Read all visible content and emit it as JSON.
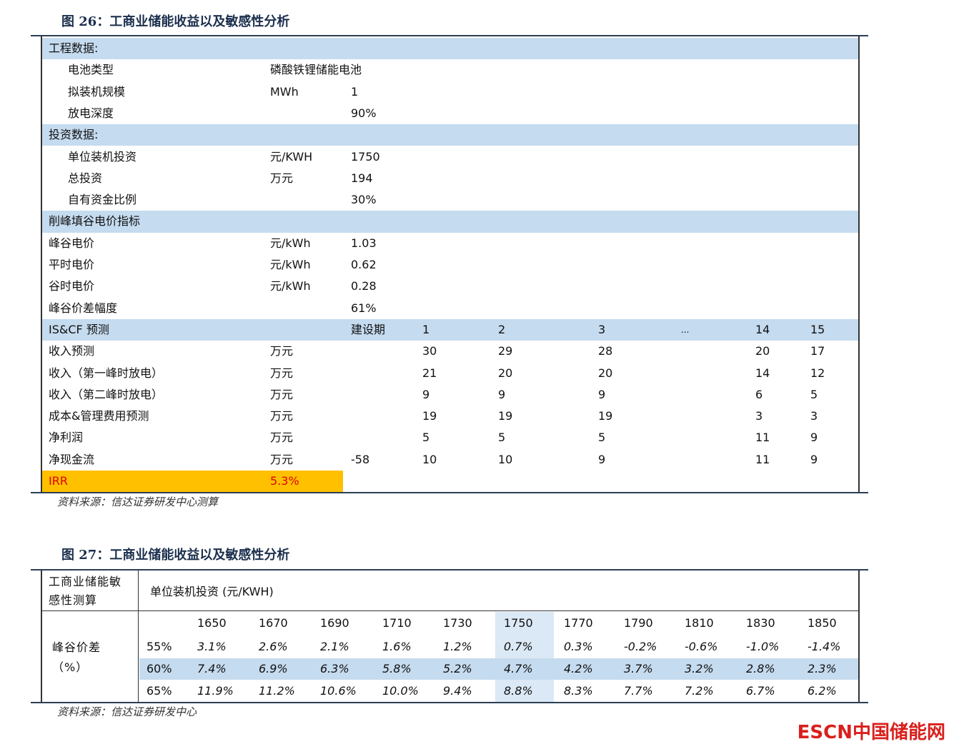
{
  "figure26": {
    "title": "图 26：工商业储能收益以及敏感性分析",
    "rows": [
      {
        "section": "工程数据:"
      },
      {
        "label": "电池类型",
        "unit": "磷酸铁锂储能电池"
      },
      {
        "label": "拟装机规模",
        "unit": "MWh",
        "value": "1"
      },
      {
        "label": "放电深度",
        "value": "90%"
      },
      {
        "section": "投资数据:"
      },
      {
        "label": "单位装机投资",
        "unit": "元/KWH",
        "value": "1750"
      },
      {
        "label": "总投资",
        "unit": "万元",
        "value": "194"
      },
      {
        "label": "自有资金比例",
        "value": "30%"
      },
      {
        "section": "削峰填谷电价指标"
      },
      {
        "label": "峰谷电价",
        "unit": "元/kWh",
        "value": "1.03"
      },
      {
        "label": "平时电价",
        "unit": "元/kWh",
        "value": "0.62"
      },
      {
        "label": "谷时电价",
        "unit": "元/kWh",
        "value": "0.28"
      },
      {
        "label": "峰谷价差幅度",
        "value": "61%"
      },
      {
        "section": "IS&CF 预测",
        "build": "建设期",
        "years": [
          "1",
          "2",
          "3",
          "...",
          "14",
          "15"
        ]
      },
      {
        "label": "收入预测",
        "unit": "万元",
        "values": [
          "30",
          "29",
          "28",
          "20",
          "17"
        ]
      },
      {
        "label": "收入（第一峰时放电）",
        "unit": "万元",
        "values": [
          "21",
          "20",
          "20",
          "14",
          "12"
        ]
      },
      {
        "label": "收入（第二峰时放电）",
        "unit": "万元",
        "values": [
          "9",
          "9",
          "9",
          "6",
          "5"
        ]
      },
      {
        "label": "成本&管理费用预测",
        "unit": "万元",
        "values": [
          "19",
          "19",
          "19",
          "3",
          "3"
        ]
      },
      {
        "label": "净利润",
        "unit": "万元",
        "values": [
          "5",
          "5",
          "5",
          "11",
          "9"
        ]
      },
      {
        "label": "净现金流",
        "unit": "万元",
        "value": "-58",
        "values": [
          "10",
          "10",
          "9",
          "11",
          "9"
        ]
      }
    ],
    "irr": {
      "label": "IRR",
      "value": "5.3%"
    },
    "source": "资料来源：信达证券研发中心测算"
  },
  "figure27": {
    "title": "图 27：工商业储能收益以及敏感性分析",
    "corner": "工商业储能敏感性测算",
    "header": "单位装机投资 (元/KWH)",
    "row_label": "峰谷价差（%）",
    "prices": [
      "1650",
      "1670",
      "1690",
      "1710",
      "1730",
      "1750",
      "1770",
      "1790",
      "1810",
      "1830",
      "1850"
    ],
    "rows": [
      {
        "spread": "55%",
        "values": [
          "3.1%",
          "2.6%",
          "2.1%",
          "1.6%",
          "1.2%",
          "0.7%",
          "0.3%",
          "-0.2%",
          "-0.6%",
          "-1.0%",
          "-1.4%"
        ]
      },
      {
        "spread": "60%",
        "values": [
          "7.4%",
          "6.9%",
          "6.3%",
          "5.8%",
          "5.2%",
          "4.7%",
          "4.2%",
          "3.7%",
          "3.2%",
          "2.8%",
          "2.3%"
        ]
      },
      {
        "spread": "65%",
        "values": [
          "11.9%",
          "11.2%",
          "10.6%",
          "10.0%",
          "9.4%",
          "8.8%",
          "8.3%",
          "7.7%",
          "7.2%",
          "6.7%",
          "6.2%"
        ]
      }
    ],
    "source": "资料来源：信达证券研发中心"
  },
  "logo": "ESCN中国储能网"
}
